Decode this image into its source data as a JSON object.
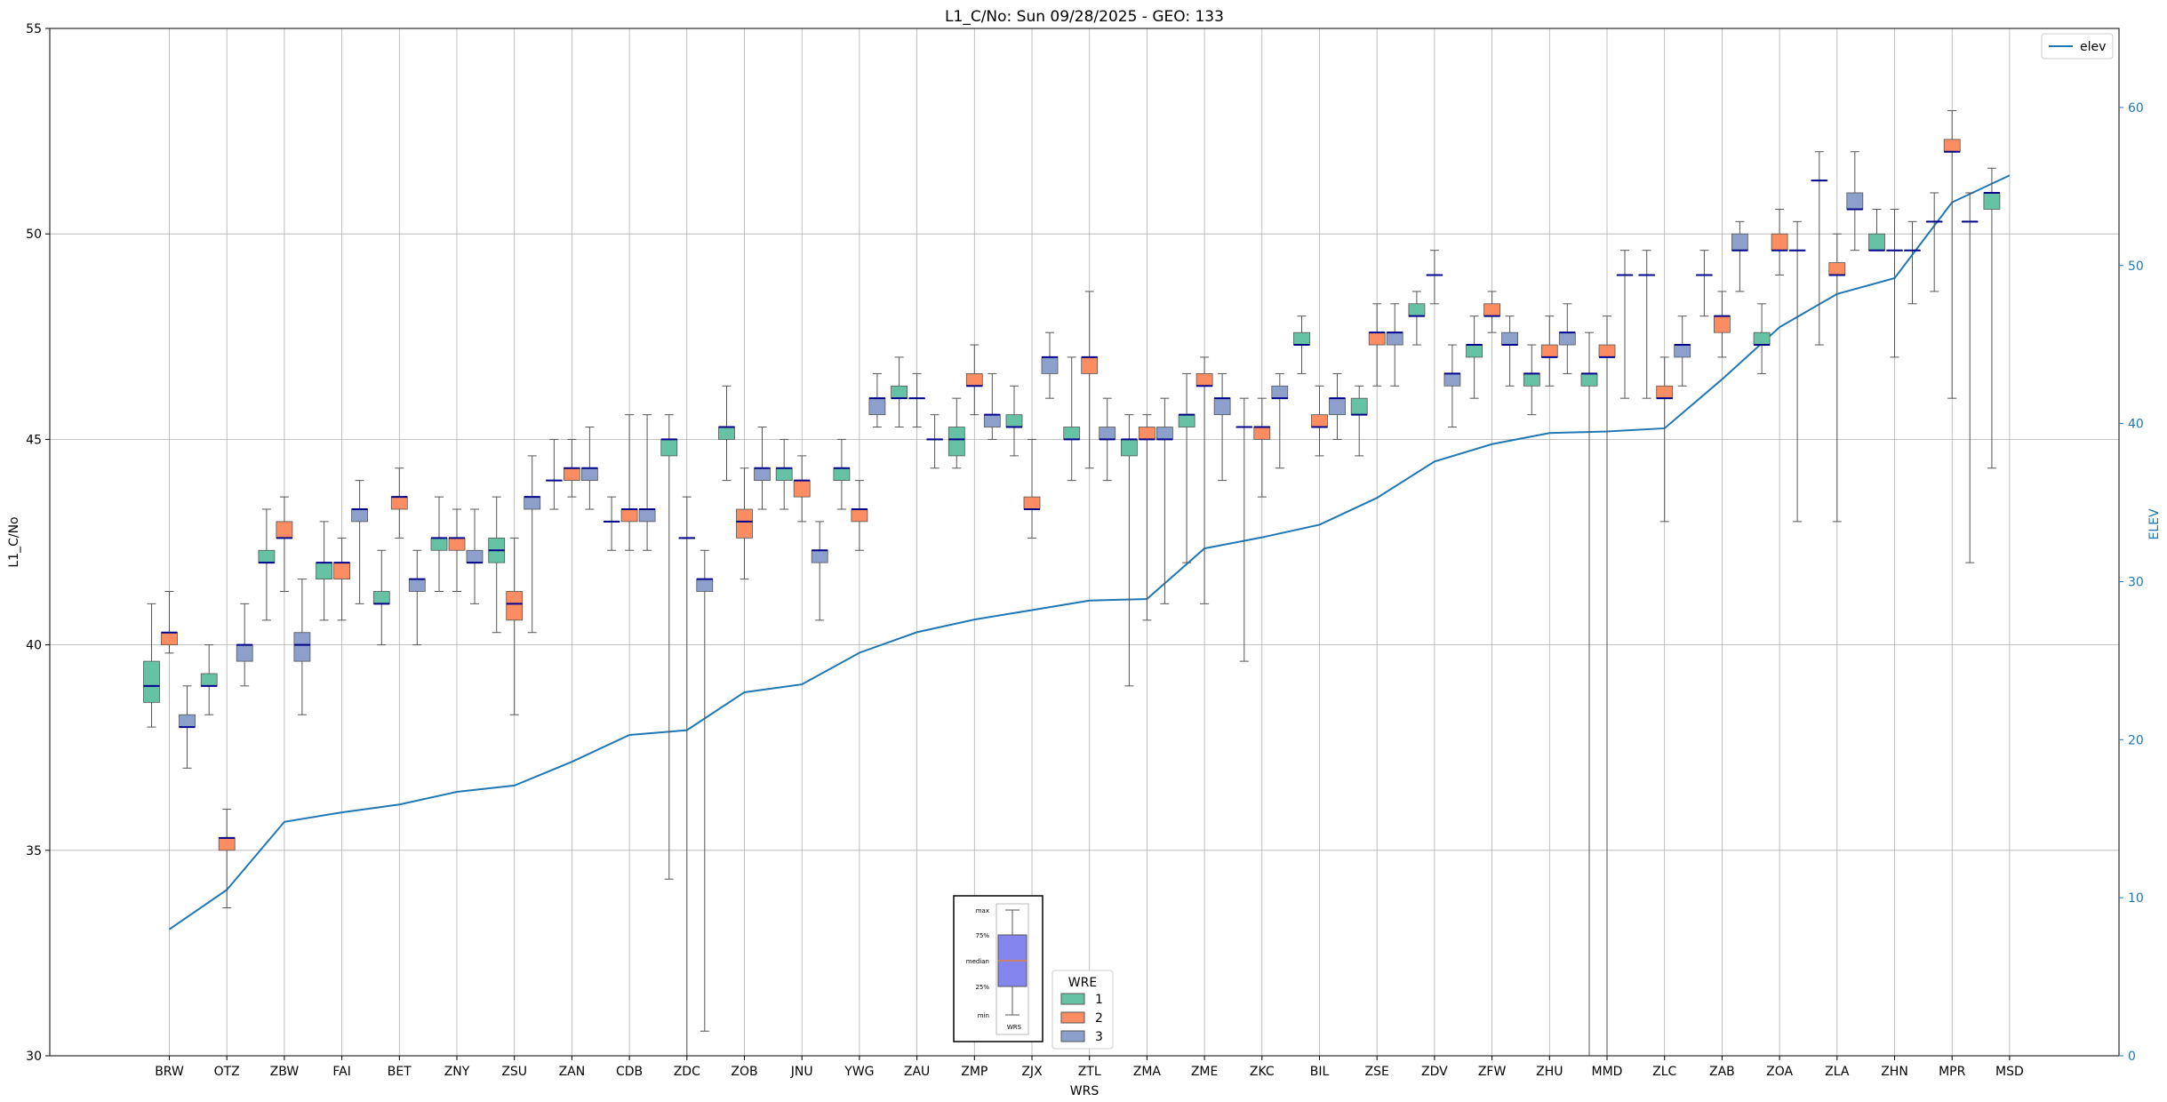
{
  "chart_data": {
    "type": "boxplot",
    "title": "L1_C/No: Sun 09/28/2025 - GEO: 133",
    "xlabel": "WRS",
    "ylabel": "L1_C/No",
    "y2label": "ELEV",
    "ylim": [
      30,
      55
    ],
    "y2lim": [
      0,
      65
    ],
    "yticks": [
      30,
      35,
      40,
      45,
      50,
      55
    ],
    "y2ticks": [
      0,
      10,
      20,
      30,
      40,
      50,
      60
    ],
    "grid": true,
    "legend_line_label": "elev",
    "legend_line_position": "upper-right",
    "wre_legend": {
      "title": "WRE",
      "entries": [
        {
          "label": "1",
          "color": "#66c2a5"
        },
        {
          "label": "2",
          "color": "#fc8d62"
        },
        {
          "label": "3",
          "color": "#8da0cb"
        }
      ]
    },
    "key_box": {
      "labels": [
        "max",
        "75%",
        "median",
        "25%",
        "min"
      ],
      "xlabel": "WRS"
    },
    "colors": {
      "wre1": "#66c2a5",
      "wre2": "#fc8d62",
      "wre3": "#8da0cb",
      "median": "#00008b",
      "elev": "#1f77b4"
    },
    "categories": [
      "BRW",
      "OTZ",
      "ZBW",
      "FAI",
      "BET",
      "ZNY",
      "ZSU",
      "ZAN",
      "CDB",
      "ZDC",
      "ZOB",
      "JNU",
      "YWG",
      "ZAU",
      "ZMP",
      "ZJX",
      "ZTL",
      "ZMA",
      "ZME",
      "ZKC",
      "BIL",
      "ZSE",
      "ZDV",
      "ZFW",
      "ZHU",
      "MMD",
      "ZLC",
      "ZAB",
      "ZOA",
      "ZLA",
      "ZHN",
      "MPR",
      "MSD"
    ],
    "elev": [
      8.0,
      10.5,
      14.8,
      15.4,
      15.9,
      16.7,
      17.1,
      18.6,
      20.3,
      20.6,
      23.0,
      23.5,
      25.5,
      26.8,
      27.6,
      28.2,
      28.8,
      28.9,
      32.1,
      32.8,
      33.6,
      35.3,
      37.6,
      38.7,
      39.4,
      39.5,
      39.7,
      42.8,
      46.1,
      48.2,
      49.2,
      54.0,
      55.7
    ],
    "series": [
      {
        "wrs": "BRW",
        "wre": 1,
        "min": 38.0,
        "q1": 38.6,
        "med": 39.0,
        "q3": 39.6,
        "max": 41.0
      },
      {
        "wrs": "BRW",
        "wre": 2,
        "min": 39.8,
        "q1": 40.0,
        "med": 40.3,
        "q3": 40.3,
        "max": 41.3
      },
      {
        "wrs": "BRW",
        "wre": 3,
        "min": 37.0,
        "q1": 38.0,
        "med": 38.0,
        "q3": 38.3,
        "max": 39.0
      },
      {
        "wrs": "OTZ",
        "wre": 1,
        "min": 38.3,
        "q1": 39.0,
        "med": 39.0,
        "q3": 39.3,
        "max": 40.0
      },
      {
        "wrs": "OTZ",
        "wre": 2,
        "min": 33.6,
        "q1": 35.0,
        "med": 35.3,
        "q3": 35.3,
        "max": 36.0
      },
      {
        "wrs": "OTZ",
        "wre": 3,
        "min": 39.0,
        "q1": 39.6,
        "med": 40.0,
        "q3": 40.0,
        "max": 41.0
      },
      {
        "wrs": "ZBW",
        "wre": 1,
        "min": 40.6,
        "q1": 42.0,
        "med": 42.0,
        "q3": 42.3,
        "max": 43.3
      },
      {
        "wrs": "ZBW",
        "wre": 2,
        "min": 41.3,
        "q1": 42.6,
        "med": 42.6,
        "q3": 43.0,
        "max": 43.6
      },
      {
        "wrs": "ZBW",
        "wre": 3,
        "min": 38.3,
        "q1": 39.6,
        "med": 40.0,
        "q3": 40.3,
        "max": 41.6
      },
      {
        "wrs": "FAI",
        "wre": 1,
        "min": 40.6,
        "q1": 41.6,
        "med": 42.0,
        "q3": 42.0,
        "max": 43.0
      },
      {
        "wrs": "FAI",
        "wre": 2,
        "min": 40.6,
        "q1": 41.6,
        "med": 42.0,
        "q3": 42.0,
        "max": 42.6
      },
      {
        "wrs": "FAI",
        "wre": 3,
        "min": 41.0,
        "q1": 43.0,
        "med": 43.3,
        "q3": 43.3,
        "max": 44.0
      },
      {
        "wrs": "BET",
        "wre": 1,
        "min": 40.0,
        "q1": 41.0,
        "med": 41.0,
        "q3": 41.3,
        "max": 42.3
      },
      {
        "wrs": "BET",
        "wre": 2,
        "min": 42.6,
        "q1": 43.3,
        "med": 43.6,
        "q3": 43.6,
        "max": 44.3
      },
      {
        "wrs": "BET",
        "wre": 3,
        "min": 40.0,
        "q1": 41.3,
        "med": 41.6,
        "q3": 41.6,
        "max": 42.3
      },
      {
        "wrs": "ZNY",
        "wre": 1,
        "min": 41.3,
        "q1": 42.3,
        "med": 42.6,
        "q3": 42.6,
        "max": 43.6
      },
      {
        "wrs": "ZNY",
        "wre": 2,
        "min": 41.3,
        "q1": 42.3,
        "med": 42.6,
        "q3": 42.6,
        "max": 43.3
      },
      {
        "wrs": "ZNY",
        "wre": 3,
        "min": 41.0,
        "q1": 42.0,
        "med": 42.0,
        "q3": 42.3,
        "max": 43.3
      },
      {
        "wrs": "ZSU",
        "wre": 1,
        "min": 40.3,
        "q1": 42.0,
        "med": 42.3,
        "q3": 42.6,
        "max": 43.6
      },
      {
        "wrs": "ZSU",
        "wre": 2,
        "min": 38.3,
        "q1": 40.6,
        "med": 41.0,
        "q3": 41.3,
        "max": 42.6
      },
      {
        "wrs": "ZSU",
        "wre": 3,
        "min": 40.3,
        "q1": 43.3,
        "med": 43.6,
        "q3": 43.6,
        "max": 44.6
      },
      {
        "wrs": "ZAN",
        "wre": 1,
        "min": 43.3,
        "q1": 44.0,
        "med": 44.0,
        "q3": 44.0,
        "max": 45.0
      },
      {
        "wrs": "ZAN",
        "wre": 2,
        "min": 43.6,
        "q1": 44.0,
        "med": 44.3,
        "q3": 44.3,
        "max": 45.0
      },
      {
        "wrs": "ZAN",
        "wre": 3,
        "min": 43.3,
        "q1": 44.0,
        "med": 44.3,
        "q3": 44.3,
        "max": 45.3
      },
      {
        "wrs": "CDB",
        "wre": 1,
        "min": 42.3,
        "q1": 43.0,
        "med": 43.0,
        "q3": 43.0,
        "max": 43.6
      },
      {
        "wrs": "CDB",
        "wre": 2,
        "min": 42.3,
        "q1": 43.0,
        "med": 43.3,
        "q3": 43.3,
        "max": 45.6
      },
      {
        "wrs": "CDB",
        "wre": 3,
        "min": 42.3,
        "q1": 43.0,
        "med": 43.3,
        "q3": 43.3,
        "max": 45.6
      },
      {
        "wrs": "ZDC",
        "wre": 1,
        "min": 34.3,
        "q1": 44.6,
        "med": 45.0,
        "q3": 45.0,
        "max": 45.6
      },
      {
        "wrs": "ZDC",
        "wre": 2,
        "min": 30.0,
        "q1": 42.6,
        "med": 42.6,
        "q3": 42.6,
        "max": 43.6
      },
      {
        "wrs": "ZDC",
        "wre": 3,
        "min": 30.6,
        "q1": 41.3,
        "med": 41.6,
        "q3": 41.6,
        "max": 42.3
      },
      {
        "wrs": "ZOB",
        "wre": 1,
        "min": 44.0,
        "q1": 45.0,
        "med": 45.3,
        "q3": 45.3,
        "max": 46.3
      },
      {
        "wrs": "ZOB",
        "wre": 2,
        "min": 41.6,
        "q1": 42.6,
        "med": 43.0,
        "q3": 43.3,
        "max": 44.3
      },
      {
        "wrs": "ZOB",
        "wre": 3,
        "min": 43.3,
        "q1": 44.0,
        "med": 44.3,
        "q3": 44.3,
        "max": 45.3
      },
      {
        "wrs": "JNU",
        "wre": 1,
        "min": 43.3,
        "q1": 44.0,
        "med": 44.3,
        "q3": 44.3,
        "max": 45.0
      },
      {
        "wrs": "JNU",
        "wre": 2,
        "min": 43.0,
        "q1": 43.6,
        "med": 44.0,
        "q3": 44.0,
        "max": 44.6
      },
      {
        "wrs": "JNU",
        "wre": 3,
        "min": 40.6,
        "q1": 42.0,
        "med": 42.3,
        "q3": 42.3,
        "max": 43.0
      },
      {
        "wrs": "YWG",
        "wre": 1,
        "min": 43.3,
        "q1": 44.0,
        "med": 44.3,
        "q3": 44.3,
        "max": 45.0
      },
      {
        "wrs": "YWG",
        "wre": 2,
        "min": 42.3,
        "q1": 43.0,
        "med": 43.3,
        "q3": 43.3,
        "max": 44.0
      },
      {
        "wrs": "YWG",
        "wre": 3,
        "min": 45.3,
        "q1": 45.6,
        "med": 46.0,
        "q3": 46.0,
        "max": 46.6
      },
      {
        "wrs": "ZAU",
        "wre": 1,
        "min": 45.3,
        "q1": 46.0,
        "med": 46.0,
        "q3": 46.3,
        "max": 47.0
      },
      {
        "wrs": "ZAU",
        "wre": 2,
        "min": 45.3,
        "q1": 46.0,
        "med": 46.0,
        "q3": 46.0,
        "max": 46.6
      },
      {
        "wrs": "ZAU",
        "wre": 3,
        "min": 44.3,
        "q1": 45.0,
        "med": 45.0,
        "q3": 45.0,
        "max": 45.6
      },
      {
        "wrs": "ZMP",
        "wre": 1,
        "min": 44.3,
        "q1": 44.6,
        "med": 45.0,
        "q3": 45.3,
        "max": 46.0
      },
      {
        "wrs": "ZMP",
        "wre": 2,
        "min": 45.6,
        "q1": 46.3,
        "med": 46.3,
        "q3": 46.6,
        "max": 47.3
      },
      {
        "wrs": "ZMP",
        "wre": 3,
        "min": 45.0,
        "q1": 45.3,
        "med": 45.6,
        "q3": 45.6,
        "max": 46.6
      },
      {
        "wrs": "ZJX",
        "wre": 1,
        "min": 44.6,
        "q1": 45.3,
        "med": 45.3,
        "q3": 45.6,
        "max": 46.3
      },
      {
        "wrs": "ZJX",
        "wre": 2,
        "min": 42.6,
        "q1": 43.3,
        "med": 43.3,
        "q3": 43.6,
        "max": 45.0
      },
      {
        "wrs": "ZJX",
        "wre": 3,
        "min": 46.0,
        "q1": 46.6,
        "med": 47.0,
        "q3": 47.0,
        "max": 47.6
      },
      {
        "wrs": "ZTL",
        "wre": 1,
        "min": 44.0,
        "q1": 45.0,
        "med": 45.0,
        "q3": 45.3,
        "max": 47.0
      },
      {
        "wrs": "ZTL",
        "wre": 2,
        "min": 44.3,
        "q1": 46.6,
        "med": 47.0,
        "q3": 47.0,
        "max": 48.6
      },
      {
        "wrs": "ZTL",
        "wre": 3,
        "min": 44.0,
        "q1": 45.0,
        "med": 45.0,
        "q3": 45.3,
        "max": 46.0
      },
      {
        "wrs": "ZMA",
        "wre": 1,
        "min": 39.0,
        "q1": 44.6,
        "med": 45.0,
        "q3": 45.0,
        "max": 45.6
      },
      {
        "wrs": "ZMA",
        "wre": 2,
        "min": 40.6,
        "q1": 45.0,
        "med": 45.0,
        "q3": 45.3,
        "max": 45.6
      },
      {
        "wrs": "ZMA",
        "wre": 3,
        "min": 41.0,
        "q1": 45.0,
        "med": 45.0,
        "q3": 45.3,
        "max": 46.0
      },
      {
        "wrs": "ZME",
        "wre": 1,
        "min": 42.0,
        "q1": 45.3,
        "med": 45.6,
        "q3": 45.6,
        "max": 46.6
      },
      {
        "wrs": "ZME",
        "wre": 2,
        "min": 41.0,
        "q1": 46.3,
        "med": 46.3,
        "q3": 46.6,
        "max": 47.0
      },
      {
        "wrs": "ZME",
        "wre": 3,
        "min": 44.0,
        "q1": 45.6,
        "med": 46.0,
        "q3": 46.0,
        "max": 46.6
      },
      {
        "wrs": "ZKC",
        "wre": 1,
        "min": 39.6,
        "q1": 45.3,
        "med": 45.3,
        "q3": 45.3,
        "max": 46.0
      },
      {
        "wrs": "ZKC",
        "wre": 2,
        "min": 43.6,
        "q1": 45.0,
        "med": 45.3,
        "q3": 45.3,
        "max": 46.0
      },
      {
        "wrs": "ZKC",
        "wre": 3,
        "min": 44.3,
        "q1": 46.0,
        "med": 46.0,
        "q3": 46.3,
        "max": 46.6
      },
      {
        "wrs": "BIL",
        "wre": 1,
        "min": 46.6,
        "q1": 47.3,
        "med": 47.3,
        "q3": 47.6,
        "max": 48.0
      },
      {
        "wrs": "BIL",
        "wre": 2,
        "min": 44.6,
        "q1": 45.3,
        "med": 45.3,
        "q3": 45.6,
        "max": 46.3
      },
      {
        "wrs": "BIL",
        "wre": 3,
        "min": 45.0,
        "q1": 45.6,
        "med": 46.0,
        "q3": 46.0,
        "max": 46.6
      },
      {
        "wrs": "ZSE",
        "wre": 1,
        "min": 44.6,
        "q1": 45.6,
        "med": 45.6,
        "q3": 46.0,
        "max": 46.3
      },
      {
        "wrs": "ZSE",
        "wre": 2,
        "min": 46.3,
        "q1": 47.3,
        "med": 47.6,
        "q3": 47.6,
        "max": 48.3
      },
      {
        "wrs": "ZSE",
        "wre": 3,
        "min": 46.3,
        "q1": 47.3,
        "med": 47.6,
        "q3": 47.6,
        "max": 48.3
      },
      {
        "wrs": "ZDV",
        "wre": 1,
        "min": 47.3,
        "q1": 48.0,
        "med": 48.0,
        "q3": 48.3,
        "max": 48.6
      },
      {
        "wrs": "ZDV",
        "wre": 2,
        "min": 48.3,
        "q1": 49.0,
        "med": 49.0,
        "q3": 49.0,
        "max": 49.6
      },
      {
        "wrs": "ZDV",
        "wre": 3,
        "min": 45.3,
        "q1": 46.3,
        "med": 46.6,
        "q3": 46.6,
        "max": 47.3
      },
      {
        "wrs": "ZFW",
        "wre": 1,
        "min": 46.0,
        "q1": 47.0,
        "med": 47.3,
        "q3": 47.3,
        "max": 48.0
      },
      {
        "wrs": "ZFW",
        "wre": 2,
        "min": 47.6,
        "q1": 48.0,
        "med": 48.0,
        "q3": 48.3,
        "max": 48.6
      },
      {
        "wrs": "ZFW",
        "wre": 3,
        "min": 46.3,
        "q1": 47.3,
        "med": 47.3,
        "q3": 47.6,
        "max": 48.0
      },
      {
        "wrs": "ZHU",
        "wre": 1,
        "min": 45.6,
        "q1": 46.3,
        "med": 46.6,
        "q3": 46.6,
        "max": 47.3
      },
      {
        "wrs": "ZHU",
        "wre": 2,
        "min": 46.3,
        "q1": 47.0,
        "med": 47.0,
        "q3": 47.3,
        "max": 48.0
      },
      {
        "wrs": "ZHU",
        "wre": 3,
        "min": 46.6,
        "q1": 47.3,
        "med": 47.6,
        "q3": 47.6,
        "max": 48.3
      },
      {
        "wrs": "MMD",
        "wre": 1,
        "min": 30.0,
        "q1": 46.3,
        "med": 46.6,
        "q3": 46.6,
        "max": 47.6
      },
      {
        "wrs": "MMD",
        "wre": 2,
        "min": 30.0,
        "q1": 47.0,
        "med": 47.0,
        "q3": 47.3,
        "max": 48.0
      },
      {
        "wrs": "MMD",
        "wre": 3,
        "min": 46.0,
        "q1": 49.0,
        "med": 49.0,
        "q3": 49.0,
        "max": 49.6
      },
      {
        "wrs": "ZLC",
        "wre": 1,
        "min": 46.0,
        "q1": 49.0,
        "med": 49.0,
        "q3": 49.0,
        "max": 49.6
      },
      {
        "wrs": "ZLC",
        "wre": 2,
        "min": 43.0,
        "q1": 46.0,
        "med": 46.0,
        "q3": 46.3,
        "max": 47.0
      },
      {
        "wrs": "ZLC",
        "wre": 3,
        "min": 46.3,
        "q1": 47.0,
        "med": 47.3,
        "q3": 47.3,
        "max": 48.0
      },
      {
        "wrs": "ZAB",
        "wre": 1,
        "min": 48.0,
        "q1": 49.0,
        "med": 49.0,
        "q3": 49.0,
        "max": 49.6
      },
      {
        "wrs": "ZAB",
        "wre": 2,
        "min": 47.0,
        "q1": 47.6,
        "med": 48.0,
        "q3": 48.0,
        "max": 48.6
      },
      {
        "wrs": "ZAB",
        "wre": 3,
        "min": 48.6,
        "q1": 49.6,
        "med": 49.6,
        "q3": 50.0,
        "max": 50.3
      },
      {
        "wrs": "ZOA",
        "wre": 1,
        "min": 46.6,
        "q1": 47.3,
        "med": 47.3,
        "q3": 47.6,
        "max": 48.3
      },
      {
        "wrs": "ZOA",
        "wre": 2,
        "min": 49.0,
        "q1": 49.6,
        "med": 49.6,
        "q3": 50.0,
        "max": 50.6
      },
      {
        "wrs": "ZOA",
        "wre": 3,
        "min": 43.0,
        "q1": 49.6,
        "med": 49.6,
        "q3": 49.6,
        "max": 50.3
      },
      {
        "wrs": "ZLA",
        "wre": 1,
        "min": 47.3,
        "q1": 51.3,
        "med": 51.3,
        "q3": 51.3,
        "max": 52.0
      },
      {
        "wrs": "ZLA",
        "wre": 2,
        "min": 43.0,
        "q1": 49.0,
        "med": 49.0,
        "q3": 49.3,
        "max": 50.0
      },
      {
        "wrs": "ZLA",
        "wre": 3,
        "min": 49.6,
        "q1": 50.6,
        "med": 50.6,
        "q3": 51.0,
        "max": 52.0
      },
      {
        "wrs": "ZHN",
        "wre": 1,
        "min": 49.6,
        "q1": 49.6,
        "med": 49.6,
        "q3": 50.0,
        "max": 50.6
      },
      {
        "wrs": "ZHN",
        "wre": 2,
        "min": 47.0,
        "q1": 49.6,
        "med": 49.6,
        "q3": 49.6,
        "max": 50.6
      },
      {
        "wrs": "ZHN",
        "wre": 3,
        "min": 48.3,
        "q1": 49.6,
        "med": 49.6,
        "q3": 49.6,
        "max": 50.3
      },
      {
        "wrs": "MPR",
        "wre": 1,
        "min": 48.6,
        "q1": 50.3,
        "med": 50.3,
        "q3": 50.3,
        "max": 51.0
      },
      {
        "wrs": "MPR",
        "wre": 2,
        "min": 46.0,
        "q1": 52.0,
        "med": 52.0,
        "q3": 52.3,
        "max": 53.0
      },
      {
        "wrs": "MPR",
        "wre": 3,
        "min": 42.0,
        "q1": 50.3,
        "med": 50.3,
        "q3": 50.3,
        "max": 51.0
      },
      {
        "wrs": "MSD",
        "wre": 1,
        "min": 44.3,
        "q1": 50.6,
        "med": 51.0,
        "q3": 51.0,
        "max": 51.6
      }
    ]
  }
}
